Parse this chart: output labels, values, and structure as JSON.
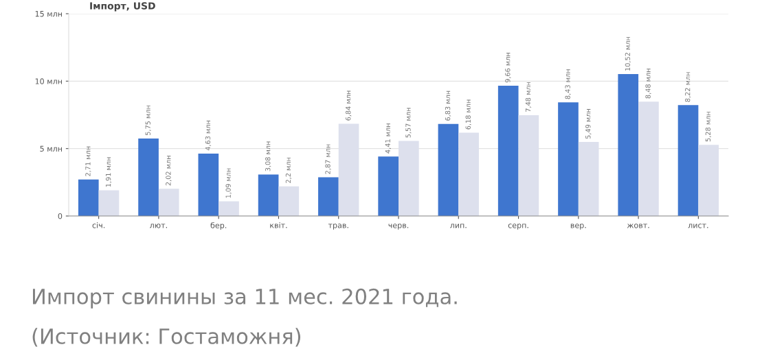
{
  "chart_data": {
    "type": "bar",
    "title": "Імпорт, USD",
    "categories": [
      "січ.",
      "лют.",
      "бер.",
      "квіт.",
      "трав.",
      "черв.",
      "лип.",
      "серп.",
      "вер.",
      "жовт.",
      "лист."
    ],
    "series": [
      {
        "color": "#3f76cf",
        "values": [
          2.71,
          5.75,
          4.63,
          3.08,
          2.87,
          4.41,
          6.83,
          9.66,
          8.43,
          10.52,
          8.22
        ],
        "value_labels": [
          "2,71 млн",
          "5,75 млн",
          "4,63 млн",
          "3,08 млн",
          "2,87 млн",
          "4,41 млн",
          "6,83 млн",
          "9,66 млн",
          "8,43 млн",
          "10,52 млн",
          "8,22 млн"
        ]
      },
      {
        "color": "#dde0ed",
        "values": [
          1.91,
          2.02,
          1.09,
          2.2,
          6.84,
          5.57,
          6.18,
          7.48,
          5.49,
          8.48,
          5.28
        ],
        "value_labels": [
          "1,91 млн",
          "2,02 млн",
          "1,09 млн",
          "2,2 млн",
          "6,84 млн",
          "5,57 млн",
          "6,18 млн",
          "7,48 млн",
          "5,49 млн",
          "8,48 млн",
          "5,28 млн"
        ]
      }
    ],
    "ylim": [
      0,
      15
    ],
    "yticks": [
      {
        "value": 0,
        "label": "0"
      },
      {
        "value": 5,
        "label": "5 млн"
      },
      {
        "value": 10,
        "label": "10 млн"
      },
      {
        "value": 15,
        "label": "15 млн"
      }
    ],
    "grid": "y",
    "annotations": [
      "Импорт свинины за 11 мес. 2021 года.",
      "(Источник: Гостаможня)"
    ]
  }
}
